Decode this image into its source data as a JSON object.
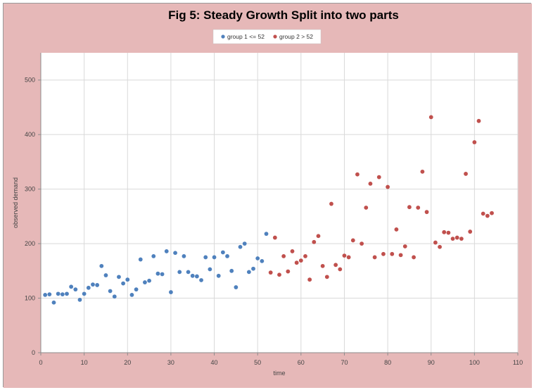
{
  "chart_data": {
    "type": "scatter",
    "title": "Fig 5: Steady Growth Split into two parts",
    "xlabel": "time",
    "ylabel": "observed demand",
    "xlim": [
      0,
      110
    ],
    "ylim": [
      0,
      550
    ],
    "x_ticks": [
      0,
      10,
      20,
      30,
      40,
      50,
      60,
      70,
      80,
      90,
      100,
      110
    ],
    "y_ticks": [
      0,
      100,
      200,
      300,
      400,
      500
    ],
    "grid": true,
    "legend_position": "top-center",
    "colors": {
      "background": "#e6b8b8",
      "plot_area": "#ffffff",
      "grid": "#d9d9d9",
      "group1": "#4f81bd",
      "group2": "#c0504d"
    },
    "series": [
      {
        "name": "group 1 <= 52",
        "x": [
          1,
          2,
          3,
          4,
          5,
          6,
          7,
          8,
          9,
          10,
          11,
          12,
          13,
          14,
          15,
          16,
          17,
          18,
          19,
          20,
          21,
          22,
          23,
          24,
          25,
          26,
          27,
          28,
          29,
          30,
          31,
          32,
          33,
          34,
          35,
          36,
          37,
          38,
          39,
          40,
          41,
          42,
          43,
          44,
          45,
          46,
          47,
          48,
          49,
          50,
          51,
          52
        ],
        "y": [
          106,
          107,
          92,
          108,
          107,
          108,
          121,
          116,
          97,
          108,
          119,
          125,
          124,
          159,
          142,
          113,
          103,
          139,
          127,
          134,
          106,
          116,
          171,
          129,
          132,
          177,
          145,
          144,
          186,
          111,
          183,
          148,
          177,
          148,
          141,
          140,
          133,
          175,
          153,
          175,
          141,
          184,
          177,
          150,
          120,
          194,
          200,
          148,
          154,
          173,
          168,
          218
        ]
      },
      {
        "name": "group 2 > 52",
        "x": [
          53,
          54,
          55,
          56,
          57,
          58,
          59,
          60,
          61,
          62,
          63,
          64,
          65,
          66,
          67,
          68,
          69,
          70,
          71,
          72,
          73,
          74,
          75,
          76,
          77,
          78,
          79,
          80,
          81,
          82,
          83,
          84,
          85,
          86,
          87,
          88,
          89,
          90,
          91,
          92,
          93,
          94,
          95,
          96,
          97,
          98,
          99,
          100,
          101,
          102,
          103,
          104
        ],
        "y": [
          147,
          211,
          143,
          177,
          149,
          186,
          165,
          169,
          177,
          134,
          203,
          214,
          159,
          139,
          273,
          161,
          153,
          178,
          175,
          206,
          327,
          200,
          266,
          310,
          175,
          322,
          181,
          304,
          181,
          226,
          179,
          195,
          267,
          175,
          266,
          332,
          258,
          432,
          202,
          194,
          221,
          220,
          209,
          211,
          209,
          328,
          222,
          386,
          425,
          255,
          251,
          256
        ]
      }
    ]
  }
}
